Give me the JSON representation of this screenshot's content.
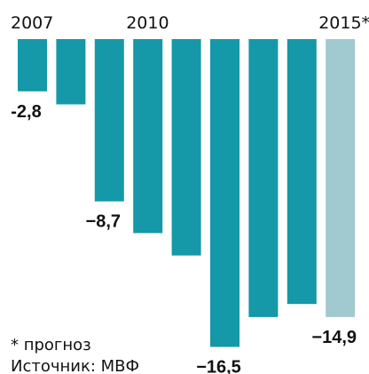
{
  "chart_data": {
    "type": "bar",
    "categories": [
      "2007",
      null,
      null,
      "2010",
      null,
      null,
      null,
      null,
      "2015*"
    ],
    "values": [
      -2.8,
      -3.5,
      -8.7,
      -10.4,
      -11.6,
      -16.5,
      -14.9,
      -14.2,
      -14.9
    ],
    "value_labels": [
      "-2,8",
      null,
      "−8,7",
      null,
      null,
      "−16,5",
      null,
      null,
      "−14,9"
    ],
    "colors": [
      "#1598a8",
      "#1598a8",
      "#1598a8",
      "#1598a8",
      "#1598a8",
      "#1598a8",
      "#1598a8",
      "#1598a8",
      "#a0cad0"
    ],
    "ylim": [
      -17,
      0
    ],
    "notes": [
      "* прогноз",
      "Источник: МВФ"
    ]
  }
}
